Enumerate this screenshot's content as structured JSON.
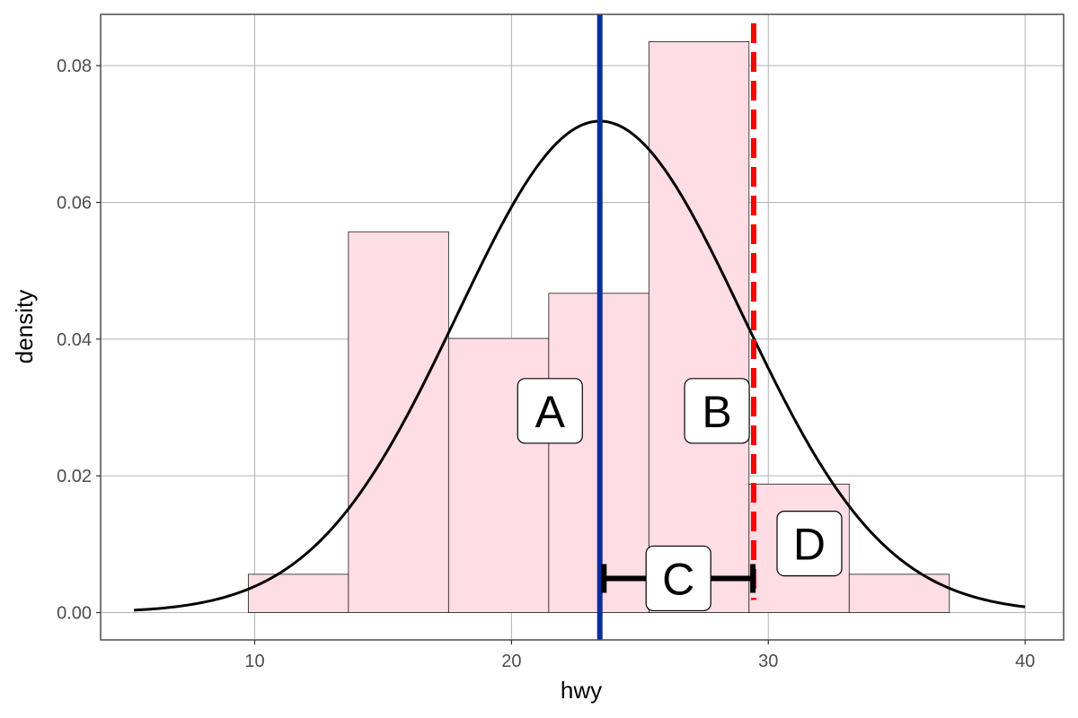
{
  "chart_data": {
    "type": "bar",
    "title": "",
    "xlabel": "hwy",
    "ylabel": "density",
    "xlim": [
      4.0,
      41.5
    ],
    "ylim": [
      -0.004,
      0.0875
    ],
    "xticks": [
      10,
      20,
      30,
      40
    ],
    "xtick_labels": [
      "10",
      "20",
      "30",
      "40"
    ],
    "yticks": [
      0.0,
      0.02,
      0.04,
      0.06,
      0.08
    ],
    "ytick_labels": [
      "0.00",
      "0.02",
      "0.04",
      "0.06",
      "0.08"
    ],
    "grid": true,
    "bins": [
      {
        "x0": 9.75,
        "x1": 13.65,
        "value": 0.0056
      },
      {
        "x0": 13.65,
        "x1": 17.55,
        "value": 0.0557
      },
      {
        "x0": 17.55,
        "x1": 21.45,
        "value": 0.0401
      },
      {
        "x0": 21.45,
        "x1": 25.35,
        "value": 0.0467
      },
      {
        "x0": 25.35,
        "x1": 29.25,
        "value": 0.0835
      },
      {
        "x0": 29.25,
        "x1": 33.15,
        "value": 0.0188
      },
      {
        "x0": 33.15,
        "x1": 37.05,
        "value": 0.0056
      }
    ],
    "normal_curve": {
      "mean": 23.44,
      "sd": 5.55,
      "x_range": [
        5.3,
        40.0
      ]
    },
    "mean_line": {
      "x": 23.44
    },
    "threshold_line": {
      "x": 29.43
    },
    "interval": {
      "from": 23.6,
      "to": 29.4,
      "y": 0.005
    },
    "annotations": [
      {
        "label": "A",
        "x": 21.5,
        "y": 0.0295
      },
      {
        "label": "B",
        "x": 28.0,
        "y": 0.0295
      },
      {
        "label": "C",
        "x": 26.5,
        "y": 0.005
      },
      {
        "label": "D",
        "x": 31.6,
        "y": 0.0101
      }
    ],
    "colors": {
      "bar_fill": "#ffdde4",
      "bar_stroke": "#1a1a1a",
      "curve": "#000000",
      "mean_line": "#0a2d9e",
      "threshold_line": "#ff0000",
      "grid": "#b3b3b3",
      "panel_border": "#4d4d4d"
    }
  }
}
